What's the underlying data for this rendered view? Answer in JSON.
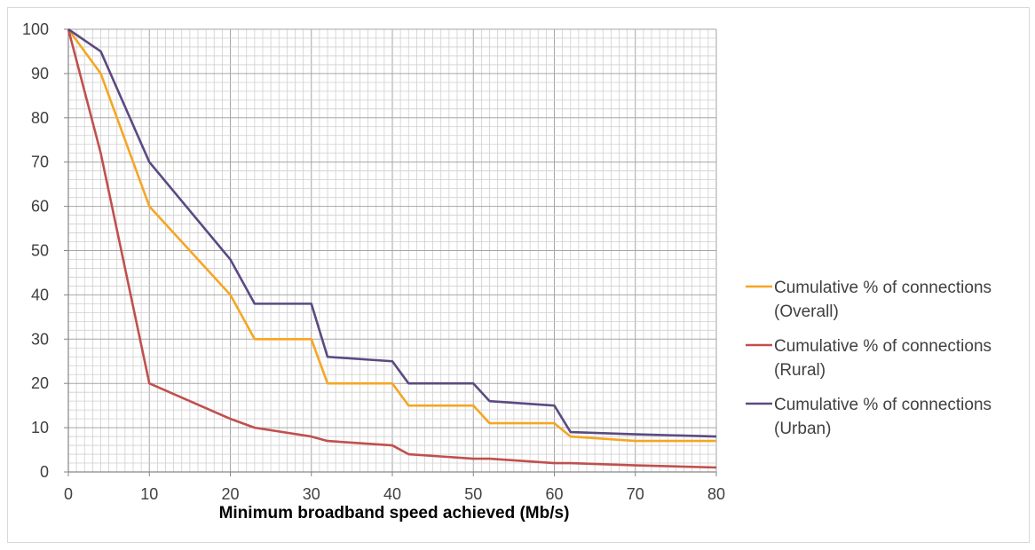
{
  "chart_data": {
    "type": "line",
    "title": "",
    "xlabel": "Minimum broadband speed achieved (Mb/s)",
    "ylabel": "",
    "xlim": [
      0,
      80
    ],
    "ylim": [
      0,
      100
    ],
    "x_ticks": [
      "0",
      "10",
      "20",
      "30",
      "40",
      "50",
      "60",
      "70",
      "80"
    ],
    "y_ticks": [
      "0",
      "10",
      "20",
      "30",
      "40",
      "50",
      "60",
      "70",
      "80",
      "90",
      "100"
    ],
    "grid": true,
    "legend_position": "right",
    "series": [
      {
        "name": "Cumulative % of connections (Overall)",
        "legend_lines": [
          "Cumulative % of connections",
          "(Overall)"
        ],
        "color": "#f5a623",
        "x": [
          0,
          4,
          10,
          20,
          23,
          30,
          32,
          40,
          42,
          50,
          52,
          60,
          62,
          70,
          80
        ],
        "y": [
          100,
          90,
          60,
          40,
          30,
          30,
          20,
          20,
          15,
          15,
          11,
          11,
          8,
          7,
          7
        ]
      },
      {
        "name": "Cumulative % of connections (Rural)",
        "legend_lines": [
          "Cumulative % of connections",
          "(Rural)"
        ],
        "color": "#c0504d",
        "x": [
          0,
          4,
          10,
          20,
          23,
          30,
          32,
          40,
          42,
          50,
          52,
          60,
          62,
          70,
          80
        ],
        "y": [
          100,
          72,
          20,
          12,
          10,
          8,
          7,
          6,
          4,
          3,
          3,
          2,
          2,
          1.5,
          1
        ]
      },
      {
        "name": "Cumulative % of connections (Urban)",
        "legend_lines": [
          "Cumulative % of connections",
          "(Urban)"
        ],
        "color": "#5b4a82",
        "x": [
          0,
          4,
          10,
          20,
          23,
          30,
          32,
          40,
          42,
          50,
          52,
          60,
          62,
          70,
          80
        ],
        "y": [
          100,
          95,
          70,
          48,
          38,
          38,
          26,
          25,
          20,
          20,
          16,
          15,
          9,
          8.5,
          8
        ]
      }
    ]
  }
}
